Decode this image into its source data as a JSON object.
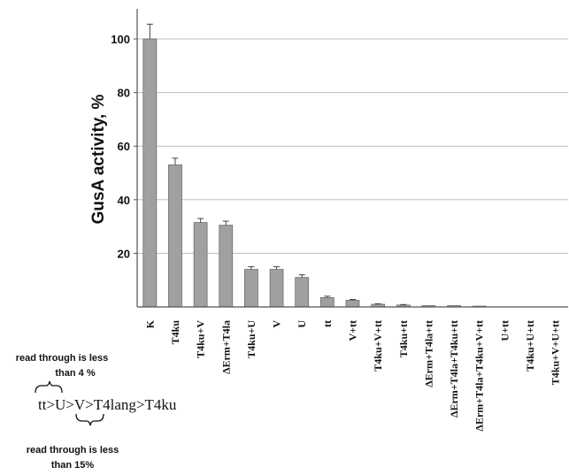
{
  "chart_data": {
    "type": "bar",
    "title": "",
    "xlabel": "",
    "ylabel": "GusA activity, %",
    "ylim": [
      0,
      110
    ],
    "yticks": [
      "20",
      "40",
      "60",
      "80",
      "100"
    ],
    "grid": true,
    "categories": [
      "K",
      "T4ku",
      "T4ku+V",
      "ΔErm+T4la",
      "T4ku+U",
      "V",
      "U",
      "tt",
      "V+tt",
      "T4ku+V+tt",
      "T4ku+tt",
      "ΔErm+T4la+tt",
      "ΔErm+T4la+T4ku+tt",
      "ΔErm+T4la+T4ku+V+tt",
      "U+tt",
      "T4ku+U+tt",
      "T4ku+V+U+tt"
    ],
    "values": [
      100,
      53,
      31.5,
      30.5,
      14,
      14,
      11,
      3.5,
      2.5,
      1,
      0.7,
      0.5,
      0.5,
      0.3,
      0,
      0,
      0
    ],
    "errors": [
      5.5,
      2.5,
      1.5,
      1.5,
      1,
      1,
      1,
      0.5,
      0.3,
      0.2,
      0.2,
      0,
      0,
      0,
      0,
      0,
      0
    ],
    "bar_color": "#a0a0a0",
    "grid_color": "#bdbdbd"
  },
  "annotations": {
    "note_top_line1": "read through is less",
    "note_top_line2": "than 4 %",
    "formula": "tt>U>V>T4lang>T4ku",
    "note_bottom_line1": "read through is less",
    "note_bottom_line2": "than 15%"
  }
}
